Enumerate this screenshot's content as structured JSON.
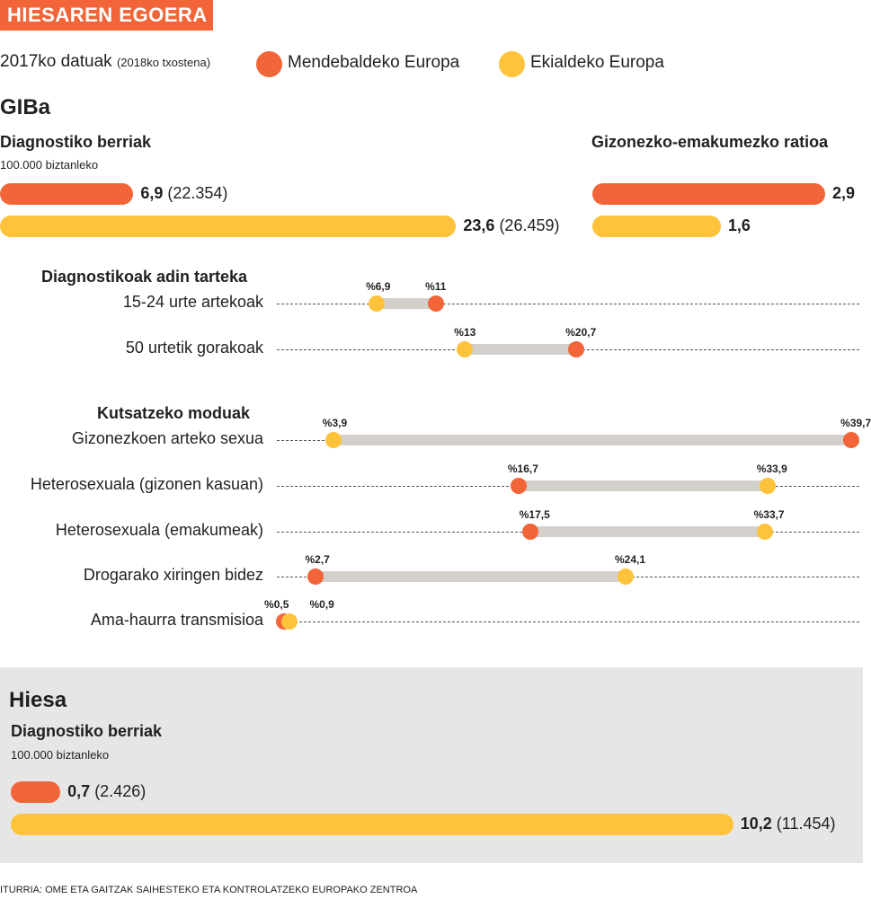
{
  "title": "HIESAREN EGOERA",
  "subtitle": "2017ko datuak",
  "subtitle_note": "(2018ko txostena)",
  "colors": {
    "west": "#f26538",
    "east": "#fec33a",
    "range": "#d3d0cc"
  },
  "legend": [
    {
      "label": "Mendebaldeko Europa",
      "color": "#f26538"
    },
    {
      "label": "Ekialdeko Europa",
      "color": "#fec33a"
    }
  ],
  "source": "ITURRIA: OME ETA GAITZAK SAIHESTEKO ETA KONTROLATZEKO EUROPAKO ZENTROA",
  "chart_data": [
    {
      "type": "bar",
      "section": "GIBa",
      "title": "Diagnostiko berriak",
      "subtitle": "100.000 biztanleko",
      "series": [
        {
          "name": "Mendebaldeko Europa",
          "value": 6.9,
          "value_label": "6,9",
          "count": "(22.354)"
        },
        {
          "name": "Ekialdeko Europa",
          "value": 23.6,
          "value_label": "23,6",
          "count": "(26.459)"
        }
      ]
    },
    {
      "type": "bar",
      "title": "Gizonezko-emakumezko ratioa",
      "series": [
        {
          "name": "Mendebaldeko Europa",
          "value": 2.9,
          "value_label": "2,9"
        },
        {
          "name": "Ekialdeko Europa",
          "value": 1.6,
          "value_label": "1,6"
        }
      ]
    },
    {
      "type": "dumbbell",
      "title": "Diagnostikoak adin tarteka",
      "unit": "%",
      "rows": [
        {
          "label": "15-24 urte artekoak",
          "west": 11,
          "east": 6.9,
          "west_label": "%11",
          "east_label": "%6,9"
        },
        {
          "label": "50 urtetik gorakoak",
          "west": 20.7,
          "east": 13,
          "west_label": "%20,7",
          "east_label": "%13"
        }
      ]
    },
    {
      "type": "dumbbell",
      "title": "Kutsatzeko moduak",
      "unit": "%",
      "rows": [
        {
          "label": "Gizonezkoen arteko sexua",
          "west": 39.7,
          "east": 3.9,
          "west_label": "%39,7",
          "east_label": "%3,9"
        },
        {
          "label": "Heterosexuala (gizonen kasuan)",
          "west": 16.7,
          "east": 33.9,
          "west_label": "%16,7",
          "east_label": "%33,9"
        },
        {
          "label": "Heterosexuala (emakumeak)",
          "west": 17.5,
          "east": 33.7,
          "west_label": "%17,5",
          "east_label": "%33,7"
        },
        {
          "label": "Drogarako xiringen bidez",
          "west": 2.7,
          "east": 24.1,
          "west_label": "%2,7",
          "east_label": "%24,1"
        },
        {
          "label": "Ama-haurra transmisioa",
          "west": 0.5,
          "east": 0.9,
          "west_label": "%0,5",
          "east_label": "%0,9"
        }
      ]
    },
    {
      "type": "bar",
      "section": "Hiesa",
      "title": "Diagnostiko berriak",
      "subtitle": "100.000 biztanleko",
      "series": [
        {
          "name": "Mendebaldeko Europa",
          "value": 0.7,
          "value_label": "0,7",
          "count": "(2.426)"
        },
        {
          "name": "Ekialdeko Europa",
          "value": 10.2,
          "value_label": "10,2",
          "count": "(11.454)"
        }
      ]
    }
  ]
}
